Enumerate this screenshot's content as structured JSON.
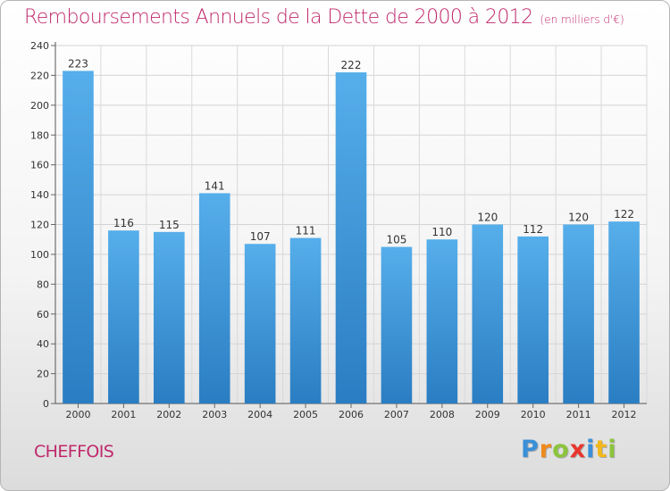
{
  "header": {
    "title": "Remboursements Annuels de la Dette de 2000 à 2012",
    "subtitle": "(en milliers d'€)"
  },
  "footer": {
    "commune": "CHEFFOIS",
    "logo_letters": [
      {
        "char": "P",
        "color": "#3a8fd8"
      },
      {
        "char": "r",
        "color": "#f08a1c"
      },
      {
        "char": "o",
        "color": "#8cc43d"
      },
      {
        "char": "x",
        "color": "#e8362d"
      },
      {
        "char": "i",
        "color": "#3a8fd8"
      },
      {
        "char": "t",
        "color": "#f2b71a"
      },
      {
        "char": "i",
        "color": "#8cc43d"
      }
    ]
  },
  "chart_data": {
    "type": "bar",
    "title": "Remboursements Annuels de la Dette de 2000 à 2012",
    "subtitle": "(en milliers d'€)",
    "categories": [
      "2000",
      "2001",
      "2002",
      "2003",
      "2004",
      "2005",
      "2006",
      "2007",
      "2008",
      "2009",
      "2010",
      "2011",
      "2012"
    ],
    "values": [
      223,
      116,
      115,
      141,
      107,
      111,
      222,
      105,
      110,
      120,
      112,
      120,
      122
    ],
    "ylim": [
      0,
      240
    ],
    "yticks": [
      0,
      20,
      40,
      60,
      80,
      100,
      120,
      140,
      160,
      180,
      200,
      220,
      240
    ],
    "grid": true,
    "bar_color": "#4aa3e6",
    "bar_color_dark": "#2a7fc4"
  }
}
